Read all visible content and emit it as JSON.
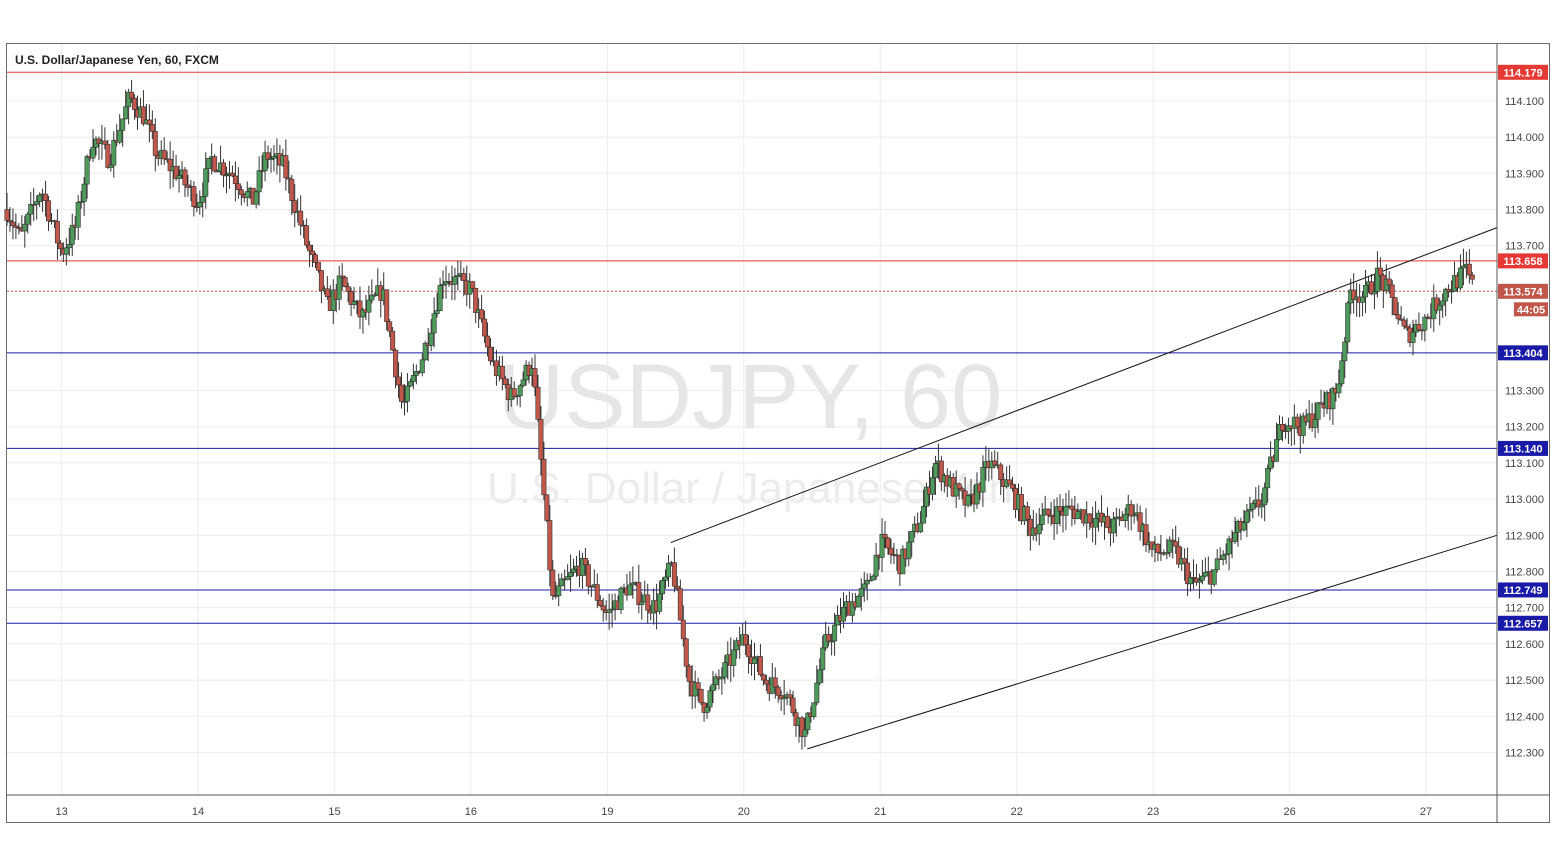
{
  "header": {
    "title": "U.S. Dollar/Japanese Yen, 60, FXCM"
  },
  "watermark": {
    "symbol": "USDJPY, 60",
    "name": "U.S. Dollar / Japanese Yen"
  },
  "colors": {
    "up": "#4e9a5a",
    "down": "#c0574a",
    "resistance": "#e53935",
    "support": "#1a1aa8",
    "grid": "#ececec"
  },
  "chart_data": {
    "type": "candlestick",
    "y_ticks": [
      "114.100",
      "114.000",
      "113.900",
      "113.800",
      "113.700",
      "113.300",
      "113.200",
      "113.100",
      "113.000",
      "112.900",
      "112.800",
      "112.700",
      "112.600",
      "112.500",
      "112.400",
      "112.300"
    ],
    "ylim": [
      112.19,
      114.24
    ],
    "x_labels": [
      {
        "label": "13",
        "pos": 1.6
      },
      {
        "label": "14",
        "pos": 3.6
      },
      {
        "label": "15",
        "pos": 5.6
      },
      {
        "label": "16",
        "pos": 7.6
      },
      {
        "label": "19",
        "pos": 9.6
      },
      {
        "label": "20",
        "pos": 11.6
      },
      {
        "label": "21",
        "pos": 13.6
      },
      {
        "label": "22",
        "pos": 15.6
      },
      {
        "label": "23",
        "pos": 17.6
      },
      {
        "label": "26",
        "pos": 19.6
      },
      {
        "label": "27",
        "pos": 21.6
      }
    ],
    "xlim": [
      0.8,
      22.64
    ],
    "price_lines": [
      {
        "value": 114.179,
        "label": "114.179",
        "color": "#e53935",
        "style": "solid"
      },
      {
        "value": 113.658,
        "label": "113.658",
        "color": "#e53935",
        "style": "solid"
      },
      {
        "value": 113.404,
        "label": "113.404",
        "color": "#1a1aa8",
        "style": "solid"
      },
      {
        "value": 113.14,
        "label": "113.140",
        "color": "#1a1aa8",
        "style": "solid"
      },
      {
        "value": 112.749,
        "label": "112.749",
        "color": "#1a1aa8",
        "style": "solid"
      },
      {
        "value": 112.657,
        "label": "112.657",
        "color": "#1a1aa8",
        "style": "solid"
      }
    ],
    "last_price": {
      "value": 113.574,
      "label": "113.574",
      "countdown": "44:05",
      "color": "#c0574a"
    },
    "trendlines": [
      {
        "x1": 10.53,
        "y1": 112.88,
        "x2": 22.64,
        "y2": 113.75
      },
      {
        "x1": 12.53,
        "y1": 112.31,
        "x2": 22.64,
        "y2": 112.9
      }
    ],
    "anchors": [
      [
        0.8,
        113.8
      ],
      [
        1.0,
        113.72
      ],
      [
        1.3,
        113.86
      ],
      [
        1.6,
        113.68
      ],
      [
        1.8,
        113.75
      ],
      [
        2.05,
        114.0
      ],
      [
        2.3,
        113.94
      ],
      [
        2.6,
        114.11
      ],
      [
        2.8,
        114.06
      ],
      [
        3.0,
        113.95
      ],
      [
        3.3,
        113.9
      ],
      [
        3.6,
        113.82
      ],
      [
        3.8,
        113.94
      ],
      [
        4.1,
        113.9
      ],
      [
        4.4,
        113.82
      ],
      [
        4.6,
        113.95
      ],
      [
        4.85,
        113.92
      ],
      [
        5.2,
        113.7
      ],
      [
        5.5,
        113.53
      ],
      [
        5.7,
        113.6
      ],
      [
        6.0,
        113.5
      ],
      [
        6.3,
        113.58
      ],
      [
        6.6,
        113.25
      ],
      [
        6.9,
        113.4
      ],
      [
        7.2,
        113.62
      ],
      [
        7.6,
        113.58
      ],
      [
        7.9,
        113.38
      ],
      [
        8.2,
        113.28
      ],
      [
        8.5,
        113.38
      ],
      [
        8.8,
        112.72
      ],
      [
        9.2,
        112.82
      ],
      [
        9.6,
        112.68
      ],
      [
        9.9,
        112.76
      ],
      [
        10.3,
        112.7
      ],
      [
        10.55,
        112.82
      ],
      [
        10.8,
        112.5
      ],
      [
        11.0,
        112.43
      ],
      [
        11.3,
        112.52
      ],
      [
        11.6,
        112.62
      ],
      [
        11.9,
        112.5
      ],
      [
        12.2,
        112.47
      ],
      [
        12.5,
        112.35
      ],
      [
        12.8,
        112.6
      ],
      [
        13.1,
        112.7
      ],
      [
        13.4,
        112.75
      ],
      [
        13.6,
        112.88
      ],
      [
        13.9,
        112.82
      ],
      [
        14.2,
        112.95
      ],
      [
        14.4,
        113.1
      ],
      [
        14.7,
        113.02
      ],
      [
        14.9,
        112.98
      ],
      [
        15.2,
        113.1
      ],
      [
        15.5,
        113.03
      ],
      [
        15.8,
        112.92
      ],
      [
        16.1,
        112.96
      ],
      [
        16.4,
        112.97
      ],
      [
        16.7,
        112.95
      ],
      [
        17.0,
        112.92
      ],
      [
        17.3,
        112.98
      ],
      [
        17.6,
        112.85
      ],
      [
        17.9,
        112.86
      ],
      [
        18.2,
        112.76
      ],
      [
        18.5,
        112.8
      ],
      [
        18.8,
        112.9
      ],
      [
        19.2,
        113.0
      ],
      [
        19.5,
        113.22
      ],
      [
        19.8,
        113.2
      ],
      [
        20.0,
        113.24
      ],
      [
        20.3,
        113.3
      ],
      [
        20.5,
        113.58
      ],
      [
        20.7,
        113.56
      ],
      [
        20.9,
        113.62
      ],
      [
        21.1,
        113.55
      ],
      [
        21.3,
        113.45
      ],
      [
        21.6,
        113.5
      ],
      [
        21.9,
        113.58
      ],
      [
        22.2,
        113.63
      ],
      [
        22.3,
        113.574
      ]
    ]
  }
}
